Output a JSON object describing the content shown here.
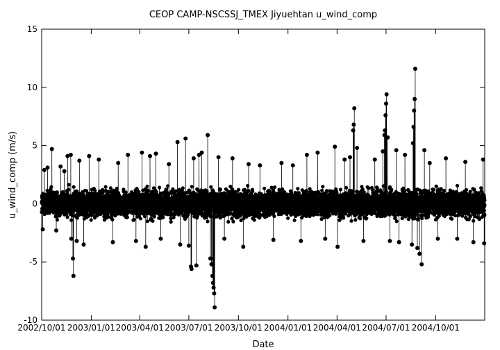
{
  "chart_data": {
    "type": "scatter",
    "title": "CEOP CAMP-NSCSSJ_TMEX Jiyuehtan  u_wind_comp",
    "xlabel": "Date",
    "ylabel": "u_wind_comp (m/s)",
    "xlim": [
      "2002-10-01",
      "2004-12-31"
    ],
    "ylim": [
      -10,
      15
    ],
    "yticks": [
      -10,
      -5,
      0,
      5,
      10,
      15
    ],
    "xticks": [
      "2002/10/01",
      "2003/01/01",
      "2003/04/01",
      "2003/07/01",
      "2003/10/01",
      "2004/01/01",
      "2004/04/01",
      "2004/07/01",
      "2004/10/01"
    ],
    "xtick_labels": [
      "2002/10/01",
      "2003/01/01",
      "2003/04/01",
      "2003/07/01",
      "2003/10/01",
      "2004/01/01",
      "2004/04/01",
      "2004/07/01",
      "2004/10/01"
    ],
    "style": "points connected by thin lines (linespoints)",
    "grid": false,
    "legend": "none",
    "typical_band": [
      -2.2,
      2.5
    ],
    "series": [
      {
        "points": [
          [
            "2002-10-03",
            -2.2
          ],
          [
            "2002-10-06",
            2.9
          ],
          [
            "2002-10-12",
            3.1
          ],
          [
            "2002-10-20",
            4.7
          ],
          [
            "2002-10-28",
            -2.3
          ],
          [
            "2002-11-05",
            3.2
          ],
          [
            "2002-11-12",
            2.8
          ],
          [
            "2002-11-18",
            4.1
          ],
          [
            "2002-11-24",
            4.2
          ],
          [
            "2002-11-25",
            -3.0
          ],
          [
            "2002-11-28",
            -4.7
          ],
          [
            "2002-11-29",
            -6.2
          ],
          [
            "2002-12-05",
            -3.2
          ],
          [
            "2002-12-10",
            3.7
          ],
          [
            "2002-12-18",
            -3.5
          ],
          [
            "2002-12-28",
            4.1
          ],
          [
            "2003-01-15",
            3.8
          ],
          [
            "2003-02-10",
            -3.3
          ],
          [
            "2003-02-20",
            3.5
          ],
          [
            "2003-03-10",
            4.2
          ],
          [
            "2003-03-25",
            -3.2
          ],
          [
            "2003-04-05",
            4.4
          ],
          [
            "2003-04-12",
            -3.7
          ],
          [
            "2003-04-20",
            4.1
          ],
          [
            "2003-05-01",
            4.3
          ],
          [
            "2003-05-10",
            -3.0
          ],
          [
            "2003-05-25",
            3.4
          ],
          [
            "2003-06-10",
            5.3
          ],
          [
            "2003-06-15",
            -3.5
          ],
          [
            "2003-06-25",
            5.6
          ],
          [
            "2003-07-01",
            -3.6
          ],
          [
            "2003-07-05",
            -5.4
          ],
          [
            "2003-07-06",
            -5.6
          ],
          [
            "2003-07-10",
            3.9
          ],
          [
            "2003-07-15",
            -5.3
          ],
          [
            "2003-07-20",
            4.2
          ],
          [
            "2003-07-25",
            4.4
          ],
          [
            "2003-08-05",
            5.9
          ],
          [
            "2003-08-10",
            -4.7
          ],
          [
            "2003-08-12",
            -5.2
          ],
          [
            "2003-08-14",
            -6.2
          ],
          [
            "2003-08-15",
            -6.8
          ],
          [
            "2003-08-16",
            -7.2
          ],
          [
            "2003-08-17",
            -7.7
          ],
          [
            "2003-08-18",
            -8.9
          ],
          [
            "2003-08-25",
            4.0
          ],
          [
            "2003-09-05",
            -3.0
          ],
          [
            "2003-09-20",
            3.9
          ],
          [
            "2003-10-10",
            -3.7
          ],
          [
            "2003-10-20",
            3.4
          ],
          [
            "2003-11-10",
            3.3
          ],
          [
            "2003-12-05",
            -3.1
          ],
          [
            "2003-12-20",
            3.5
          ],
          [
            "2004-01-10",
            3.3
          ],
          [
            "2004-01-25",
            -3.2
          ],
          [
            "2004-02-05",
            4.2
          ],
          [
            "2004-02-25",
            4.4
          ],
          [
            "2004-03-10",
            -3.0
          ],
          [
            "2004-03-28",
            4.9
          ],
          [
            "2004-04-02",
            -3.7
          ],
          [
            "2004-04-15",
            3.8
          ],
          [
            "2004-04-25",
            4.0
          ],
          [
            "2004-05-01",
            6.3
          ],
          [
            "2004-05-02",
            6.8
          ],
          [
            "2004-05-03",
            8.2
          ],
          [
            "2004-05-08",
            4.8
          ],
          [
            "2004-05-20",
            -3.2
          ],
          [
            "2004-06-10",
            3.8
          ],
          [
            "2004-06-25",
            4.5
          ],
          [
            "2004-06-28",
            5.9
          ],
          [
            "2004-06-29",
            6.3
          ],
          [
            "2004-06-30",
            7.6
          ],
          [
            "2004-07-01",
            8.6
          ],
          [
            "2004-07-02",
            9.4
          ],
          [
            "2004-07-04",
            5.7
          ],
          [
            "2004-07-08",
            -3.2
          ],
          [
            "2004-07-20",
            4.6
          ],
          [
            "2004-07-25",
            -3.3
          ],
          [
            "2004-08-05",
            4.2
          ],
          [
            "2004-08-18",
            -3.5
          ],
          [
            "2004-08-20",
            5.2
          ],
          [
            "2004-08-21",
            6.6
          ],
          [
            "2004-08-22",
            8.0
          ],
          [
            "2004-08-23",
            9.0
          ],
          [
            "2004-08-24",
            11.6
          ],
          [
            "2004-08-28",
            -3.8
          ],
          [
            "2004-09-01",
            -4.3
          ],
          [
            "2004-09-05",
            -5.2
          ],
          [
            "2004-09-10",
            4.6
          ],
          [
            "2004-09-20",
            3.5
          ],
          [
            "2004-10-05",
            -3.0
          ],
          [
            "2004-10-20",
            3.9
          ],
          [
            "2004-11-10",
            -3.0
          ],
          [
            "2004-11-25",
            3.6
          ],
          [
            "2004-12-10",
            -3.3
          ],
          [
            "2004-12-28",
            3.8
          ],
          [
            "2004-12-30",
            -3.4
          ]
        ]
      }
    ]
  }
}
